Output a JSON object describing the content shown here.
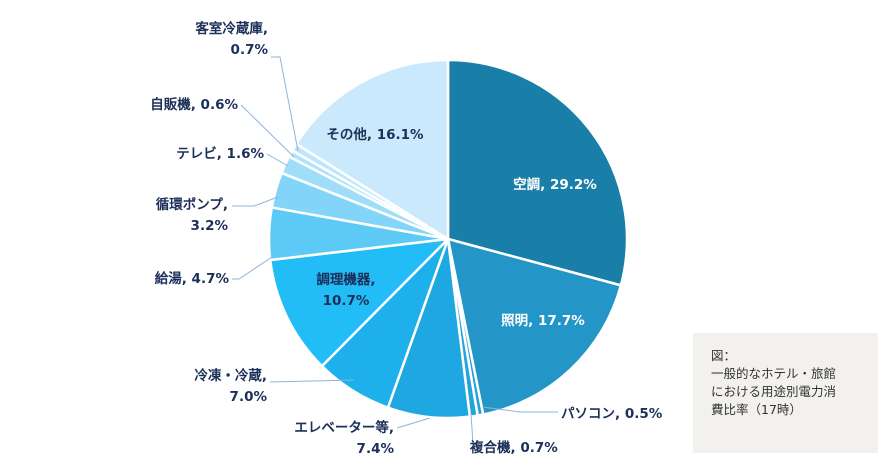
{
  "chart_data": {
    "type": "pie",
    "slices": [
      {
        "label": "空調",
        "value": 29.2,
        "color": "#1a7fa8",
        "text_color": "#ffffff",
        "lines": [
          "空調, 29.2%"
        ]
      },
      {
        "label": "照明",
        "value": 17.7,
        "color": "#2396c7",
        "text_color": "#ffffff",
        "lines": [
          "照明, 17.7%"
        ]
      },
      {
        "label": "パソコン",
        "value": 0.5,
        "color": "#27a1d8",
        "text_color": "#1b2f59",
        "lines": [
          "パソコン, 0.5%"
        ]
      },
      {
        "label": "複合機",
        "value": 0.7,
        "color": "#24a4dc",
        "text_color": "#1b2f59",
        "lines": [
          "複合機, 0.7%"
        ]
      },
      {
        "label": "エレベーター等",
        "value": 7.4,
        "color": "#1fa7e2",
        "text_color": "#1b2f59",
        "lines": [
          "エレベーター等,",
          "7.4%"
        ]
      },
      {
        "label": "冷凍・冷蔵",
        "value": 7.0,
        "color": "#1eb0ea",
        "text_color": "#1b2f59",
        "lines": [
          "冷凍・冷蔵,",
          "7.0%"
        ]
      },
      {
        "label": "調理機器",
        "value": 10.7,
        "color": "#22bdf6",
        "text_color": "#1b2f59",
        "lines": [
          "調理機器,",
          "10.7%"
        ]
      },
      {
        "label": "給湯",
        "value": 4.7,
        "color": "#5cc9f6",
        "text_color": "#1b2f59",
        "lines": [
          "給湯, 4.7%"
        ]
      },
      {
        "label": "循環ポンプ",
        "value": 3.2,
        "color": "#82d4f8",
        "text_color": "#1b2f59",
        "lines": [
          "循環ポンプ,",
          "3.2%"
        ]
      },
      {
        "label": "テレビ",
        "value": 1.6,
        "color": "#9fddf9",
        "text_color": "#1b2f59",
        "lines": [
          "テレビ, 1.6%"
        ]
      },
      {
        "label": "自販機",
        "value": 0.6,
        "color": "#b3e3fa",
        "text_color": "#1b2f59",
        "lines": [
          "自販機, 0.6%"
        ]
      },
      {
        "label": "客室冷蔵庫",
        "value": 0.7,
        "color": "#bde7fb",
        "text_color": "#1b2f59",
        "lines": [
          "客室冷蔵庫,",
          "0.7%"
        ]
      },
      {
        "label": "その他",
        "value": 16.1,
        "color": "#cbe9fc",
        "text_color": "#1b2f59",
        "lines": [
          "その他, 16.1%"
        ]
      }
    ]
  },
  "caption": {
    "line1": "図：",
    "line2": "一般的なホテル・旅館",
    "line3": "における用途別電力消",
    "line4": "費比率（17時）"
  }
}
